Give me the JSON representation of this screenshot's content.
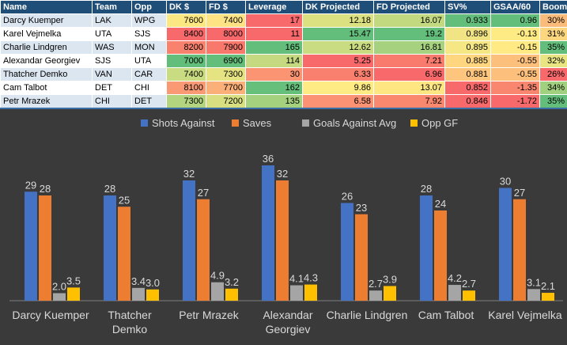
{
  "table": {
    "headers": [
      "Name",
      "Team",
      "Opp",
      "DK $",
      "FD $",
      "Leverage",
      "DK Projected",
      "FD Projected",
      "SV%",
      "GSAA/60",
      "Boom%"
    ],
    "rows": [
      {
        "name": "Darcy Kuemper",
        "team": "LAK",
        "opp": "WPG",
        "dk": "7600",
        "fd": "7400",
        "leverage": "17",
        "dk_proj": "12.18",
        "fd_proj": "16.07",
        "sv": "0.933",
        "gsaa": "0.96",
        "boom": "30%",
        "colors": {
          "dk": "#fce883",
          "fd": "#fde384",
          "leverage": "#f8696b",
          "dk_proj": "#dbe081",
          "fd_proj": "#c3d980",
          "sv": "#63be7b",
          "gsaa": "#63be7b",
          "boom": "#fbbc7b"
        }
      },
      {
        "name": "Karel Vejmelka",
        "team": "UTA",
        "opp": "SJS",
        "dk": "8400",
        "fd": "8000",
        "leverage": "11",
        "dk_proj": "15.47",
        "fd_proj": "19.2",
        "sv": "0.896",
        "gsaa": "-0.13",
        "boom": "31%",
        "colors": {
          "dk": "#f8696b",
          "fd": "#f8696b",
          "leverage": "#f8696b",
          "dk_proj": "#63be7b",
          "fd_proj": "#63be7b",
          "sv": "#f1e484",
          "gsaa": "#ffeb84",
          "boom": "#fcd780"
        }
      },
      {
        "name": "Charlie Lindgren",
        "team": "WAS",
        "opp": "MON",
        "dk": "8200",
        "fd": "7900",
        "leverage": "165",
        "dk_proj": "12.62",
        "fd_proj": "16.81",
        "sv": "0.895",
        "gsaa": "-0.15",
        "boom": "35%",
        "colors": {
          "dk": "#f9826e",
          "fd": "#f8786c",
          "leverage": "#63be7b",
          "dk_proj": "#cadc81",
          "fd_proj": "#a6d17e",
          "sv": "#f4e784",
          "gsaa": "#ffea84",
          "boom": "#63be7b"
        }
      },
      {
        "name": "Alexandar Georgiev",
        "team": "SJS",
        "opp": "UTA",
        "dk": "7000",
        "fd": "6900",
        "leverage": "114",
        "dk_proj": "5.25",
        "fd_proj": "7.21",
        "sv": "0.885",
        "gsaa": "-0.55",
        "boom": "32%",
        "colors": {
          "dk": "#63be7b",
          "fd": "#63be7b",
          "leverage": "#c5da80",
          "dk_proj": "#f8696b",
          "fd_proj": "#f87b6e",
          "sv": "#fed680",
          "gsaa": "#fdc07c",
          "boom": "#e9e583"
        }
      },
      {
        "name": "Thatcher Demko",
        "team": "VAN",
        "opp": "CAR",
        "dk": "7400",
        "fd": "7300",
        "leverage": "30",
        "dk_proj": "6.33",
        "fd_proj": "6.96",
        "sv": "0.881",
        "gsaa": "-0.55",
        "boom": "26%",
        "colors": {
          "dk": "#c9dc81",
          "fd": "#e6e383",
          "leverage": "#fa9473",
          "dk_proj": "#f9806e",
          "fd_proj": "#f8696b",
          "sv": "#fdc57d",
          "gsaa": "#fdc07c",
          "boom": "#f8696b"
        }
      },
      {
        "name": "Cam Talbot",
        "team": "DET",
        "opp": "CHI",
        "dk": "8100",
        "fd": "7700",
        "leverage": "162",
        "dk_proj": "9.86",
        "fd_proj": "13.07",
        "sv": "0.852",
        "gsaa": "-1.35",
        "boom": "34%",
        "colors": {
          "dk": "#fa9a74",
          "fd": "#fbb079",
          "leverage": "#66bf7b",
          "dk_proj": "#ffeb84",
          "fd_proj": "#fee683",
          "sv": "#f8696b",
          "gsaa": "#f9876f",
          "boom": "#a1d07e"
        }
      },
      {
        "name": "Petr Mrazek",
        "team": "CHI",
        "opp": "DET",
        "dk": "7300",
        "fd": "7200",
        "leverage": "135",
        "dk_proj": "6.58",
        "fd_proj": "7.92",
        "sv": "0.846",
        "gsaa": "-1.72",
        "boom": "35%",
        "colors": {
          "dk": "#b3d57f",
          "fd": "#d7df81",
          "leverage": "#a3d17e",
          "dk_proj": "#fa9273",
          "fd_proj": "#f9886f",
          "sv": "#f8696b",
          "gsaa": "#f8696b",
          "boom": "#63be7b"
        }
      }
    ]
  },
  "chart_data": {
    "type": "bar",
    "categories": [
      [
        "Darcy Kuemper"
      ],
      [
        "Thatcher",
        "Demko"
      ],
      [
        "Petr Mrazek"
      ],
      [
        "Alexandar",
        "Georgiev"
      ],
      [
        "Charlie Lindgren"
      ],
      [
        "Cam Talbot"
      ],
      [
        "Karel Vejmelka"
      ]
    ],
    "series": [
      {
        "name": "Shots Against",
        "color": "#4472c4",
        "values": [
          29,
          28,
          32,
          36,
          26,
          28,
          30
        ],
        "labels": [
          "29",
          "28",
          "32",
          "36",
          "26",
          "28",
          "30"
        ]
      },
      {
        "name": "Saves",
        "color": "#ed7d31",
        "values": [
          28,
          25,
          27,
          32,
          23,
          24,
          27
        ],
        "labels": [
          "28",
          "25",
          "27",
          "32",
          "23",
          "24",
          "27"
        ]
      },
      {
        "name": "Goals Against Avg",
        "color": "#a5a5a5",
        "values": [
          2.0,
          3.4,
          4.9,
          4.1,
          2.7,
          4.2,
          3.1
        ],
        "labels": [
          "2.0",
          "3.4",
          "4.9",
          "4.1",
          "2.7",
          "4.2",
          "3.1"
        ]
      },
      {
        "name": "Opp GF",
        "color": "#ffc000",
        "values": [
          3.5,
          3.0,
          3.2,
          4.3,
          3.9,
          2.7,
          2.1
        ],
        "labels": [
          "3.5",
          "3.0",
          "3.2",
          "4.3",
          "3.9",
          "2.7",
          "2.1"
        ]
      }
    ],
    "ylim": [
      0,
      40
    ],
    "legend_position": "top",
    "background": "#3a3a3a",
    "text_color": "#d9d9d9"
  }
}
